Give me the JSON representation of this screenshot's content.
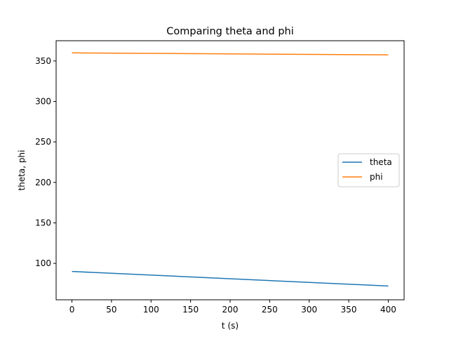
{
  "chart_data": {
    "type": "line",
    "title": "Comparing theta and phi",
    "xlabel": "t (s)",
    "ylabel": "theta, phi",
    "xlim": [
      -20,
      420
    ],
    "ylim": [
      55,
      375
    ],
    "xticks": [
      0,
      50,
      100,
      150,
      200,
      250,
      300,
      350,
      400
    ],
    "yticks": [
      100,
      150,
      200,
      250,
      300,
      350
    ],
    "grid": false,
    "legend_position": "center-right",
    "series": [
      {
        "name": "theta",
        "color": "#1f77b4",
        "x": [
          0,
          400
        ],
        "y": [
          90,
          72
        ]
      },
      {
        "name": "phi",
        "color": "#ff7f0e",
        "x": [
          0,
          400
        ],
        "y": [
          360,
          357.5
        ]
      }
    ]
  }
}
